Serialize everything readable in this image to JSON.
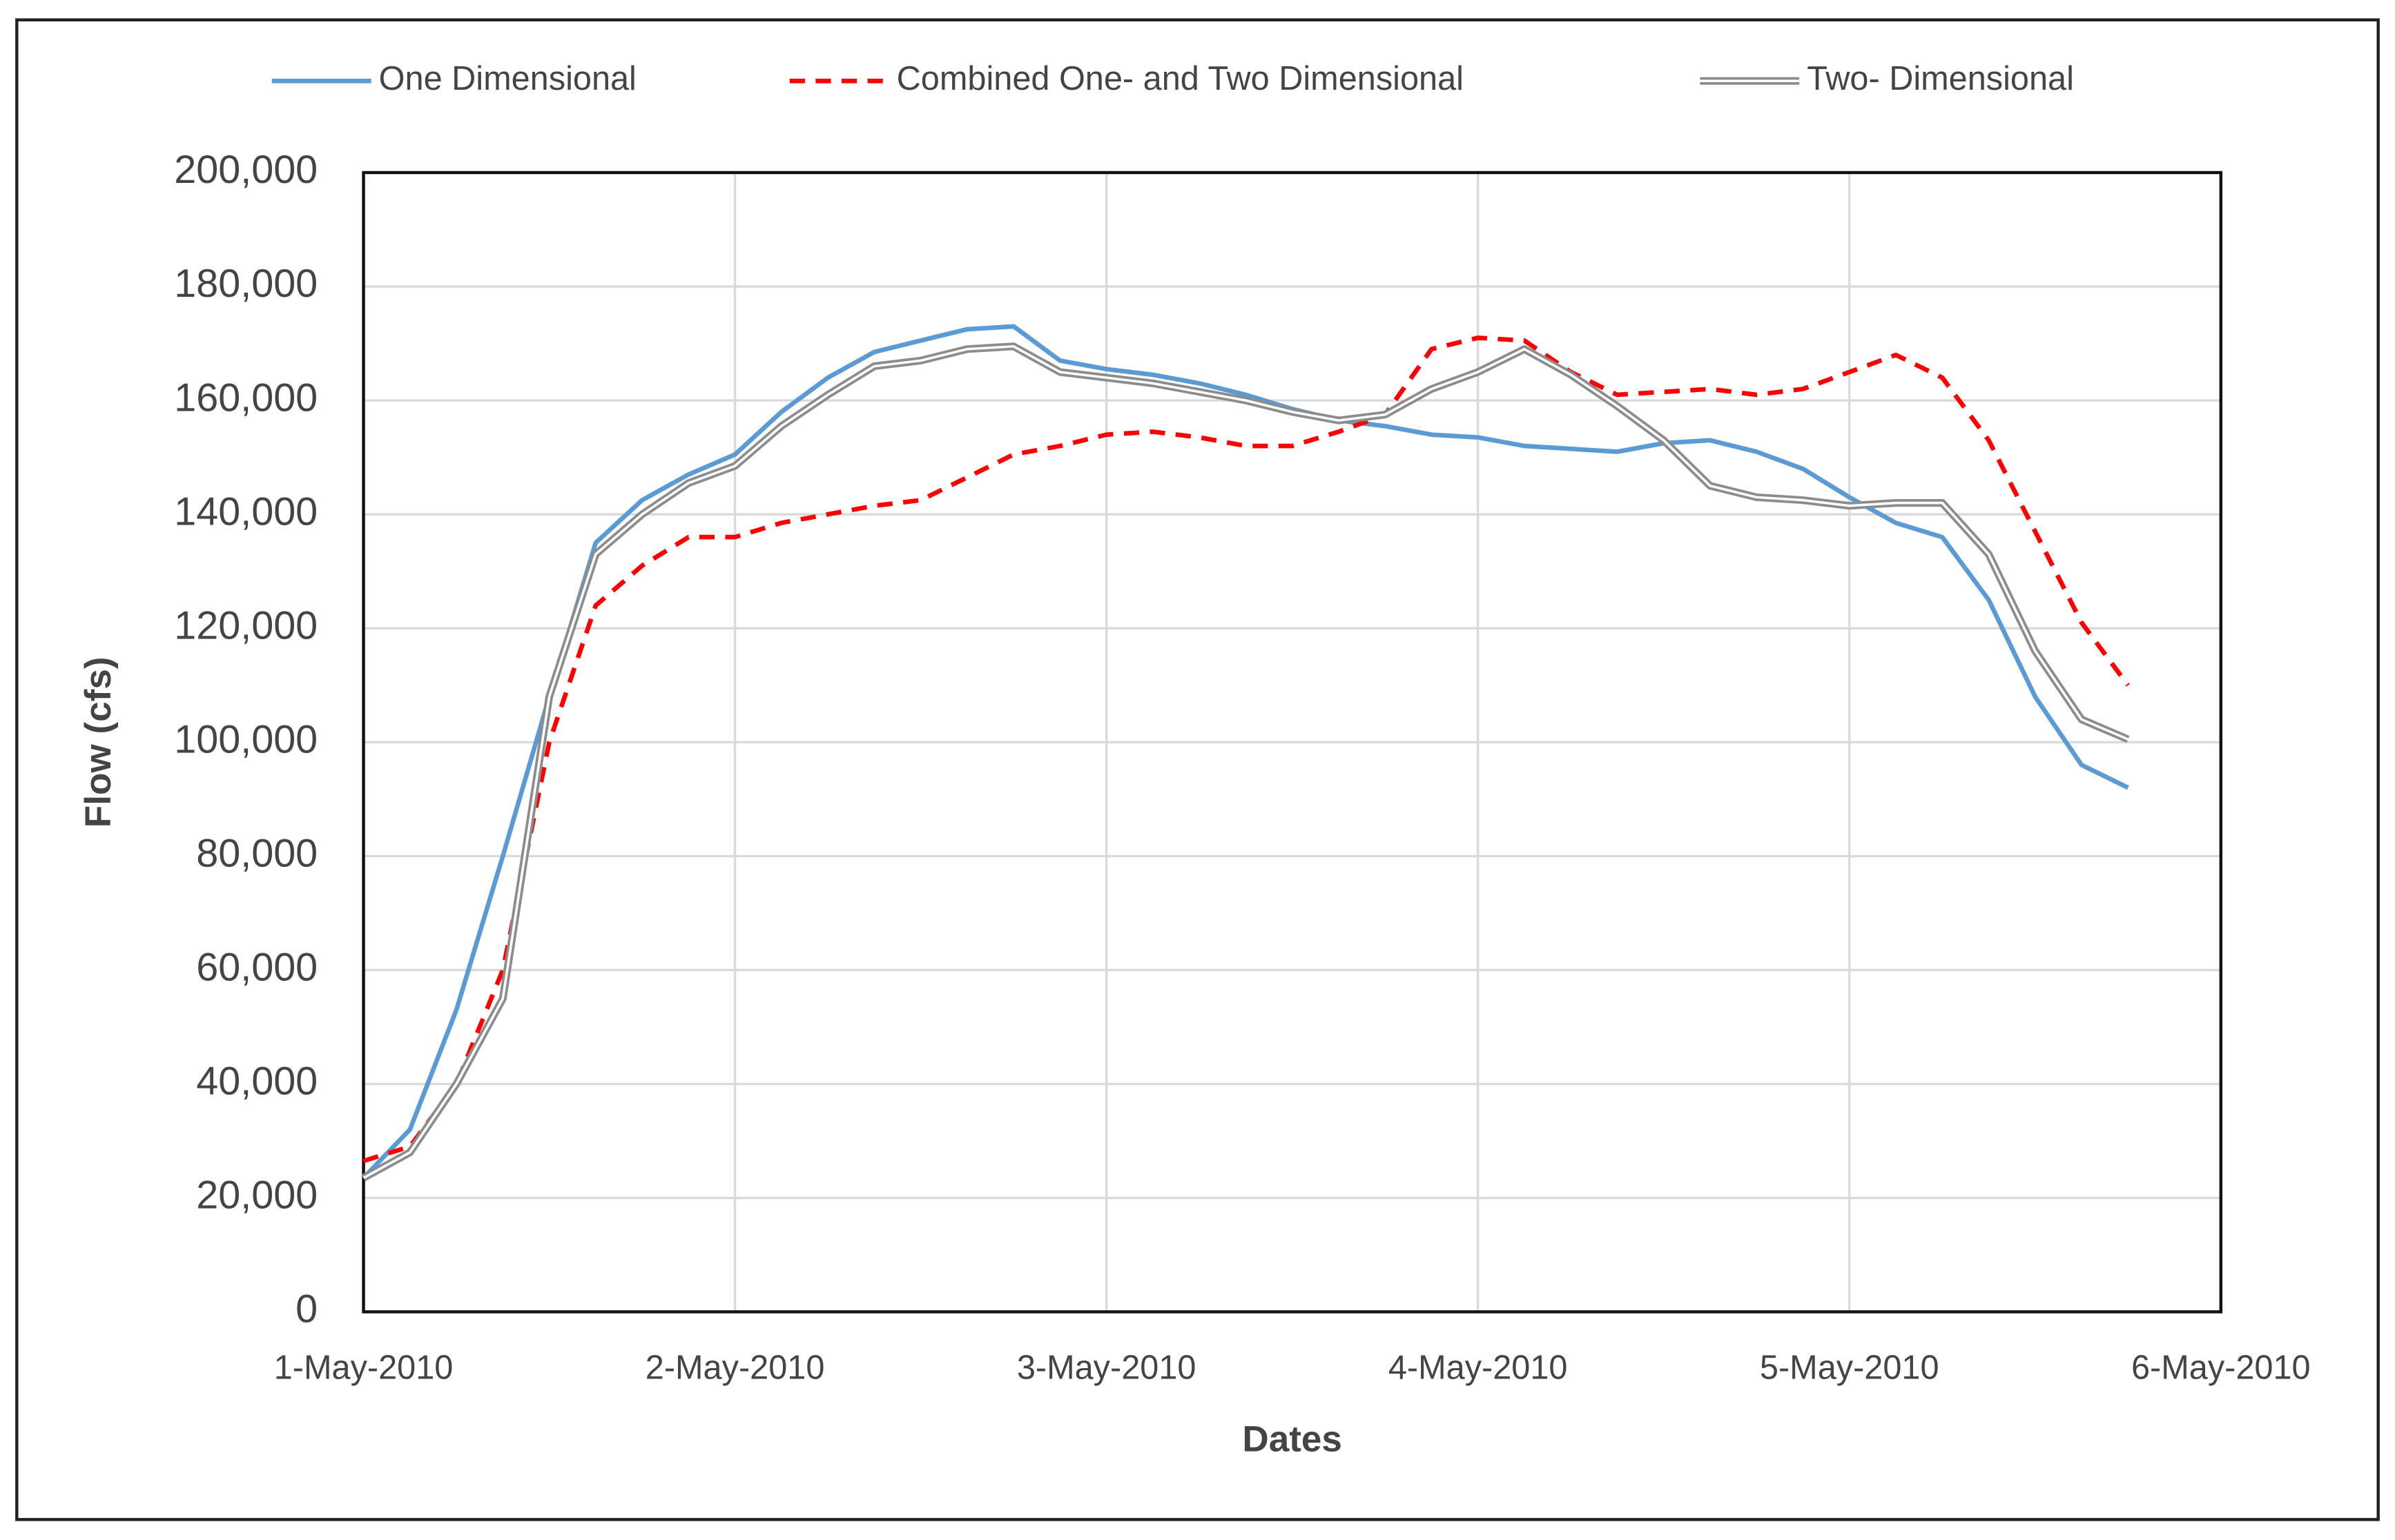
{
  "chart_data": {
    "type": "line",
    "xlabel": "Dates",
    "ylabel": "Flow (cfs)",
    "x": [
      0,
      0.125,
      0.25,
      0.375,
      0.5,
      0.625,
      0.75,
      0.875,
      1,
      1.125,
      1.25,
      1.375,
      1.5,
      1.625,
      1.75,
      1.875,
      2,
      2.125,
      2.25,
      2.375,
      2.5,
      2.625,
      2.75,
      2.875,
      3,
      3.125,
      3.25,
      3.375,
      3.5,
      3.625,
      3.75,
      3.875,
      4,
      4.125,
      4.25,
      4.375,
      4.5,
      4.625,
      4.75
    ],
    "series": [
      {
        "name": "One Dimensional",
        "color": "#5b9bd5",
        "style": "solid",
        "values": [
          23500,
          32000,
          53000,
          80000,
          108000,
          135000,
          142500,
          147000,
          150500,
          158000,
          164000,
          168500,
          170500,
          172500,
          173000,
          167000,
          165500,
          164500,
          163000,
          161000,
          158500,
          156500,
          155500,
          154000,
          153500,
          152000,
          151500,
          151000,
          152500,
          153000,
          151000,
          148000,
          143000,
          138500,
          136000,
          125000,
          108000,
          96000,
          92000
        ]
      },
      {
        "name": "Combined One- and Two Dimensional",
        "color": "#ff0000",
        "style": "dashed",
        "values": [
          26500,
          29000,
          40000,
          60000,
          100000,
          124000,
          131000,
          136000,
          136000,
          138500,
          140000,
          141500,
          142500,
          146500,
          150500,
          152000,
          154000,
          154500,
          153500,
          152000,
          152000,
          154500,
          157500,
          169000,
          171000,
          170500,
          165000,
          161000,
          161500,
          162000,
          161000,
          162000,
          165000,
          168000,
          164000,
          153000,
          137000,
          121000,
          110000
        ]
      },
      {
        "name": "Two- Dimensional",
        "color": "#8c8c8c",
        "style": "double",
        "values": [
          23500,
          28000,
          40000,
          55000,
          108000,
          133000,
          140000,
          145500,
          148500,
          155500,
          161000,
          166000,
          167000,
          169000,
          169500,
          165000,
          164000,
          163000,
          161500,
          160000,
          158000,
          156500,
          157500,
          162000,
          165000,
          169000,
          164500,
          159000,
          153000,
          145000,
          143000,
          142500,
          141500,
          142000,
          142000,
          133000,
          116000,
          104000,
          100500
        ]
      }
    ],
    "xlim": [
      0,
      5
    ],
    "xticks": [
      {
        "value": 0,
        "label": "1-May-2010"
      },
      {
        "value": 1,
        "label": "2-May-2010"
      },
      {
        "value": 2,
        "label": "3-May-2010"
      },
      {
        "value": 3,
        "label": "4-May-2010"
      },
      {
        "value": 4,
        "label": "5-May-2010"
      },
      {
        "value": 5,
        "label": "6-May-2010"
      }
    ],
    "ylim": [
      0,
      200000
    ],
    "yticks": [
      {
        "value": 0,
        "label": "0"
      },
      {
        "value": 20000,
        "label": "20,000"
      },
      {
        "value": 40000,
        "label": "40,000"
      },
      {
        "value": 60000,
        "label": "60,000"
      },
      {
        "value": 80000,
        "label": "80,000"
      },
      {
        "value": 100000,
        "label": "100,000"
      },
      {
        "value": 120000,
        "label": "120,000"
      },
      {
        "value": 140000,
        "label": "140,000"
      },
      {
        "value": 160000,
        "label": "160,000"
      },
      {
        "value": 180000,
        "label": "180,000"
      },
      {
        "value": 200000,
        "label": "200,000"
      }
    ],
    "grid": true,
    "legend": "top"
  }
}
